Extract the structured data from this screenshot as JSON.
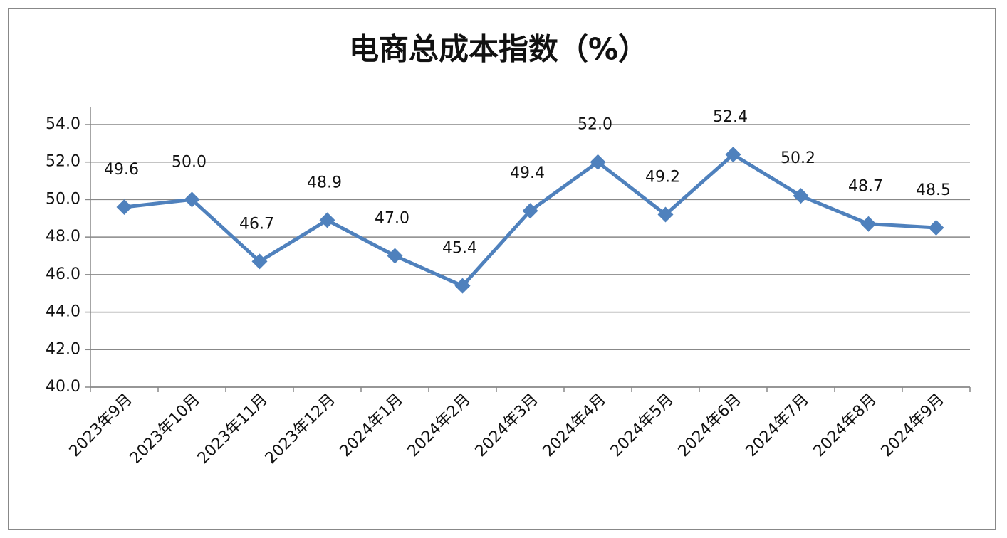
{
  "chart_data": {
    "type": "line",
    "title": "电商总成本指数（%）",
    "categories": [
      "2023年9月",
      "2023年10月",
      "2023年11月",
      "2023年12月",
      "2024年1月",
      "2024年2月",
      "2024年3月",
      "2024年4月",
      "2024年5月",
      "2024年6月",
      "2024年7月",
      "2024年8月",
      "2024年9月"
    ],
    "series": [
      {
        "name": "电商总成本指数",
        "color": "#4f81bd",
        "values": [
          49.6,
          50.0,
          46.7,
          48.9,
          47.0,
          45.4,
          49.4,
          52.0,
          49.2,
          52.4,
          50.2,
          48.7,
          48.5
        ],
        "value_labels": [
          "49.6",
          "50.0",
          "46.7",
          "48.9",
          "47.0",
          "45.4",
          "49.4",
          "52.0",
          "49.2",
          "52.4",
          "50.2",
          "48.7",
          "48.5"
        ]
      }
    ],
    "ylim": [
      40,
      54
    ],
    "yticks": [
      {
        "value": 40,
        "label": "40.0"
      },
      {
        "value": 42,
        "label": "42.0"
      },
      {
        "value": 44,
        "label": "44.0"
      },
      {
        "value": 46,
        "label": "46.0"
      },
      {
        "value": 48,
        "label": "48.0"
      },
      {
        "value": 50,
        "label": "50.0"
      },
      {
        "value": 52,
        "label": "52.0"
      },
      {
        "value": 54,
        "label": "54.0"
      }
    ],
    "grid": true
  }
}
